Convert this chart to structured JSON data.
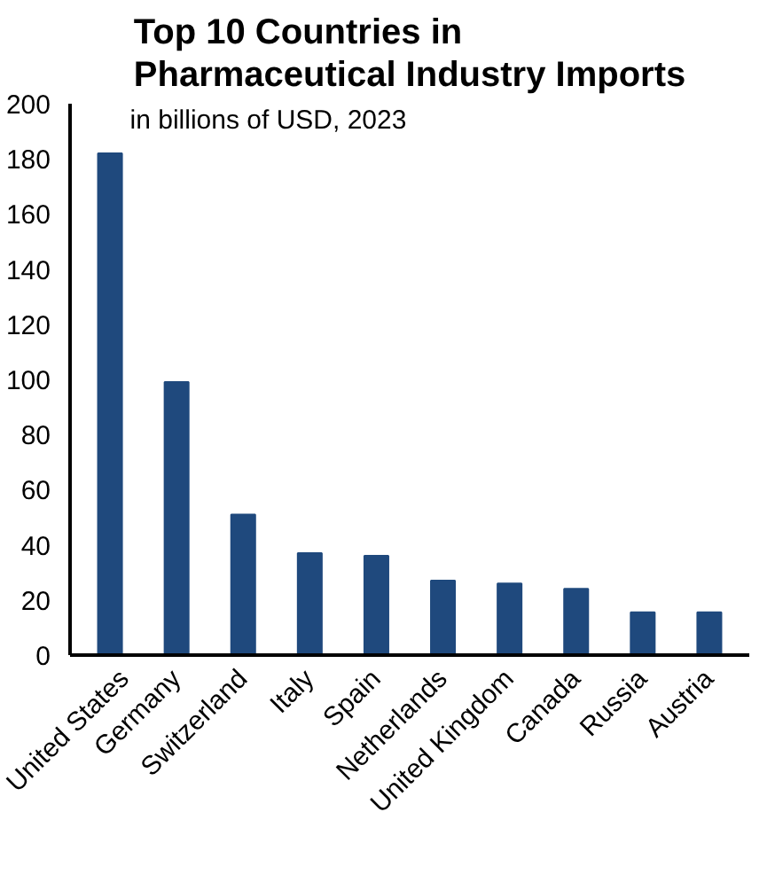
{
  "chart_data": {
    "type": "bar",
    "title": "Top 10 Countries in\nPharmaceutical Industry Imports",
    "subtitle": "in billions of USD, 2023",
    "categories": [
      "United States",
      "Germany",
      "Switzerland",
      "Italy",
      "Spain",
      "Netherlands",
      "United Kingdom",
      "Canada",
      "Russia",
      "Austria"
    ],
    "values": [
      182,
      99,
      51,
      37,
      36,
      27,
      26,
      24,
      15.5,
      15.5
    ],
    "color": "#1f497d",
    "ylim": [
      0,
      200
    ],
    "yticks": [
      0,
      20,
      40,
      60,
      80,
      100,
      120,
      140,
      160,
      180,
      200
    ],
    "grid": false
  }
}
